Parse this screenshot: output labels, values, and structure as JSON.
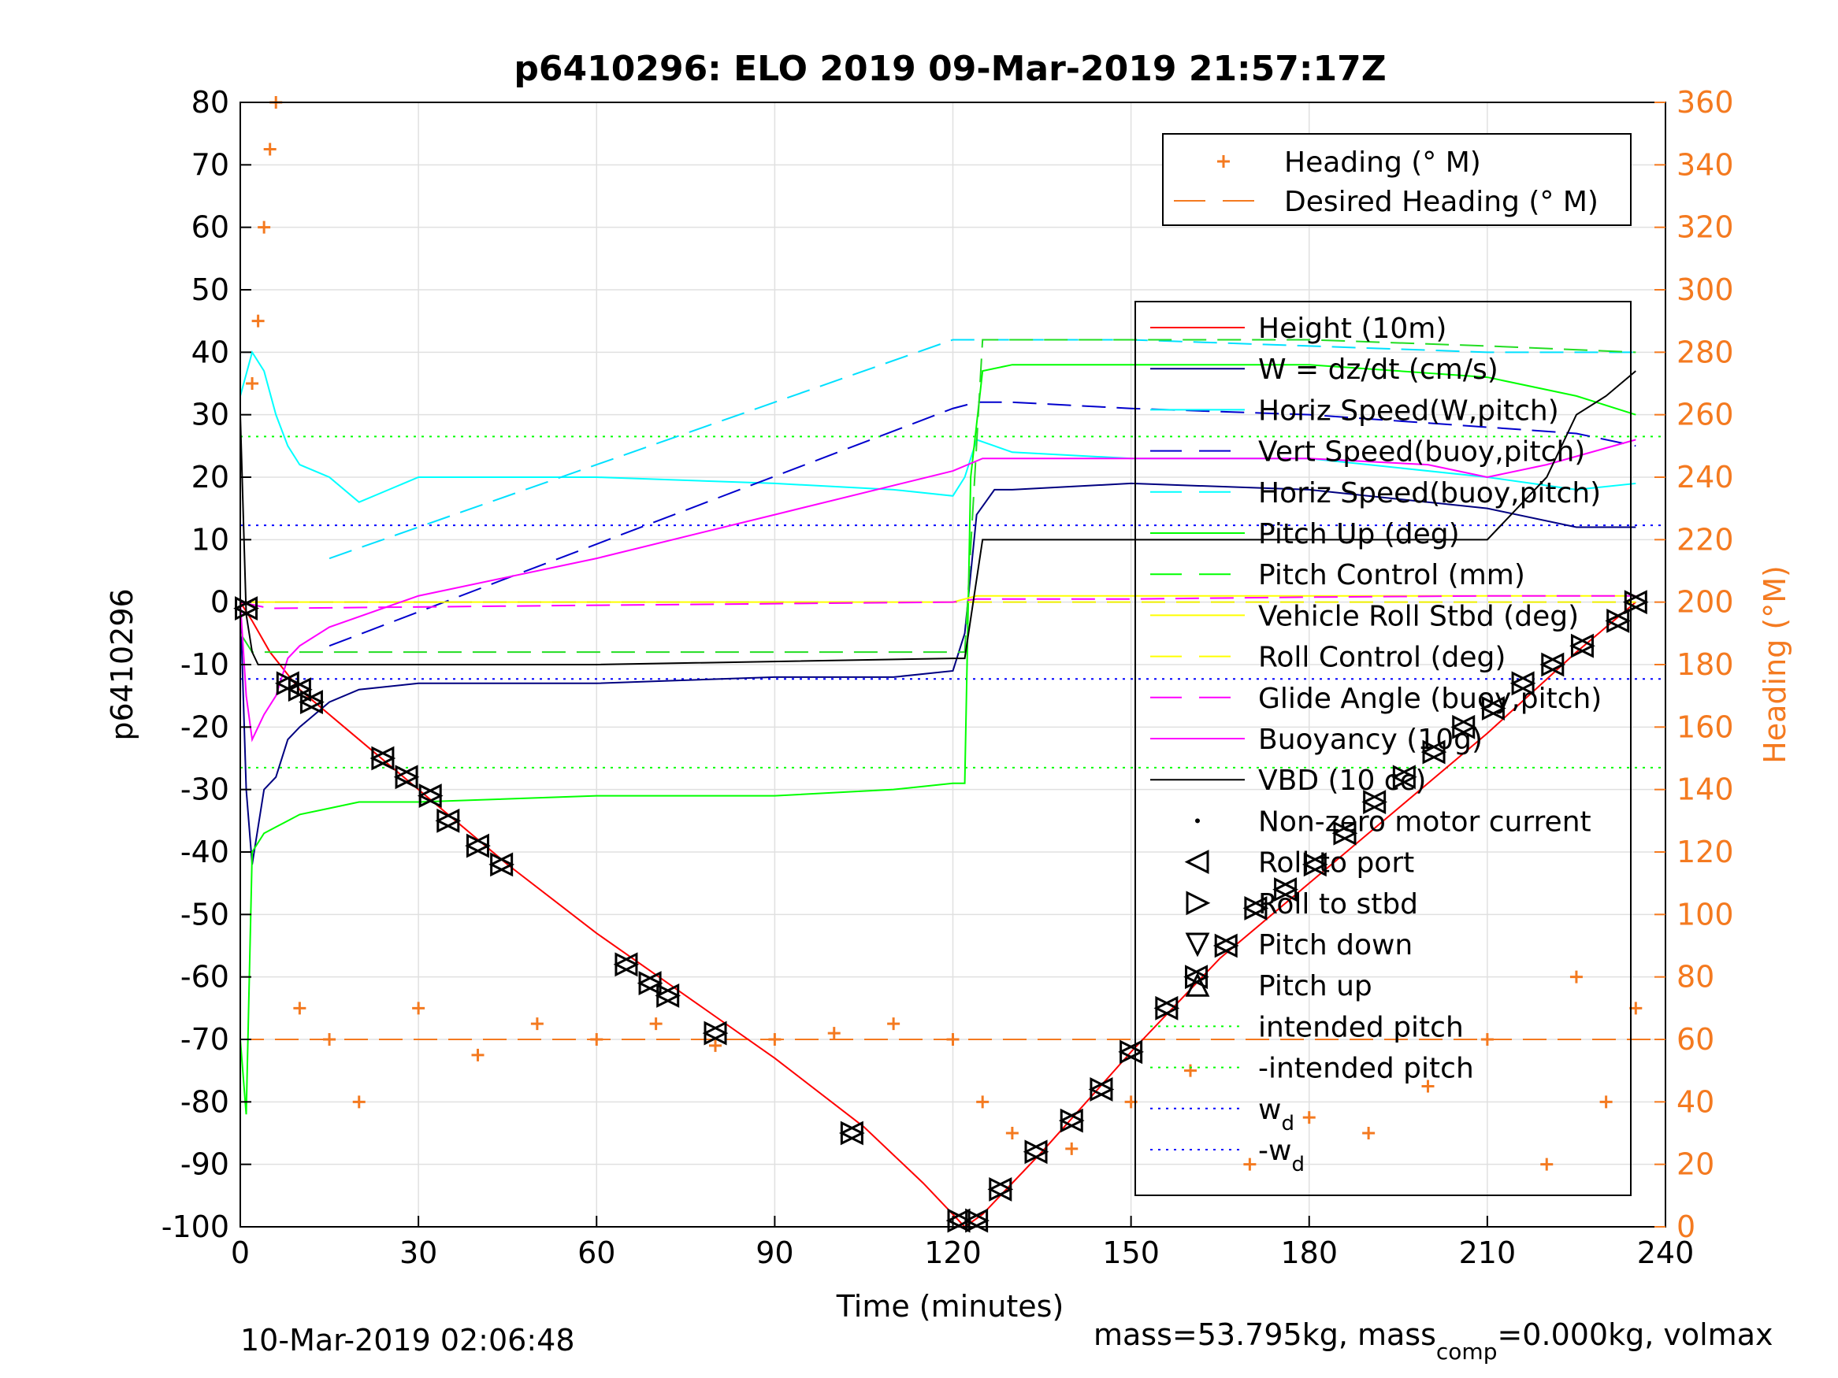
{
  "title": "p6410296: ELO 2019 09-Mar-2019 21:57:17Z",
  "xlabel": "Time (minutes)",
  "ylabel_left": "p6410296",
  "ylabel_right": "Heading (°M)",
  "footer_date": "10-Mar-2019 02:06:48",
  "footer_mass": {
    "a": "mass=53.795kg, mass",
    "sub": "comp",
    "b": "=0.000kg, volmax"
  },
  "colors": {
    "height": "#ff0000",
    "w": "#000080",
    "hspeed": "#00ffff",
    "vspeed": "#0000cd",
    "pitch": "#00ff00",
    "roll": "#ffff00",
    "glide": "#ff00ff",
    "buoy": "#ff00ff",
    "vbd": "#000000",
    "heading": "#f47a20",
    "intended": "#00ff00",
    "wd": "#0000ff"
  },
  "legend_heading": [
    {
      "label": "Heading (° M)",
      "marker": "plus"
    },
    {
      "label": "Desired Heading (° M)",
      "marker": "dash"
    }
  ],
  "legend_main": [
    {
      "label": "Height (10m)",
      "style": "solid",
      "color": "#ff0000"
    },
    {
      "label": "W = dz/dt (cm/s)",
      "style": "solid",
      "color": "#000080"
    },
    {
      "label": "Horiz Speed(W,pitch)",
      "style": "solid",
      "color": "#00ffff"
    },
    {
      "label": "Vert Speed(buoy,pitch)",
      "style": "dashed",
      "color": "#0000cd"
    },
    {
      "label": "Horiz Speed(buoy,pitch)",
      "style": "dashed",
      "color": "#00ffff"
    },
    {
      "label": "Pitch Up (deg)",
      "style": "solid",
      "color": "#00ff00"
    },
    {
      "label": "Pitch Control (mm)",
      "style": "dashed",
      "color": "#00ff00"
    },
    {
      "label": "Vehicle Roll Stbd (deg)",
      "style": "solid",
      "color": "#ffff00"
    },
    {
      "label": "Roll Control (deg)",
      "style": "dashed",
      "color": "#ffff00"
    },
    {
      "label": "Glide Angle (buoy,pitch)",
      "style": "dashed",
      "color": "#ff00ff"
    },
    {
      "label": "Buoyancy (10g)",
      "style": "solid",
      "color": "#ff00ff"
    },
    {
      "label": "VBD (10 cc)",
      "style": "solid",
      "color": "#000000"
    },
    {
      "label": "Non-zero motor current",
      "style": "dot",
      "color": "#000000"
    },
    {
      "label": "Roll to port",
      "style": "tri-left",
      "color": "#000000"
    },
    {
      "label": "Roll to stbd",
      "style": "tri-right",
      "color": "#000000"
    },
    {
      "label": "Pitch down",
      "style": "tri-down",
      "color": "#000000"
    },
    {
      "label": "Pitch up",
      "style": "tri-up",
      "color": "#000000"
    },
    {
      "label": "intended pitch",
      "style": "dotted",
      "color": "#00ff00"
    },
    {
      "label": "-intended pitch",
      "style": "dotted",
      "color": "#00ff00"
    },
    {
      "label": "w",
      "sub": "d",
      "style": "dotted",
      "color": "#0000ff"
    },
    {
      "label": "-w",
      "sub": "d",
      "style": "dotted",
      "color": "#0000ff"
    }
  ],
  "chart_data": {
    "type": "line",
    "xlim": [
      0,
      240
    ],
    "ylim_left": [
      -100,
      80
    ],
    "ylim_right": [
      0,
      360
    ],
    "xticks": [
      0,
      30,
      60,
      90,
      120,
      150,
      180,
      210,
      240
    ],
    "yticks_left": [
      80,
      70,
      60,
      50,
      40,
      30,
      20,
      10,
      0,
      -10,
      -20,
      -30,
      -40,
      -50,
      -60,
      -70,
      -80,
      -90,
      -100
    ],
    "yticks_right": [
      360,
      340,
      320,
      300,
      280,
      260,
      240,
      220,
      200,
      180,
      160,
      140,
      120,
      100,
      80,
      60,
      40,
      20,
      0
    ],
    "grid": true,
    "legend_position": "right",
    "reference_lines": {
      "intended_pitch": 26.5,
      "neg_intended_pitch": -26.5,
      "wd": 12.3,
      "neg_wd": -12.3,
      "desired_heading": 60
    },
    "series": [
      {
        "name": "Height (10m)",
        "x": [
          0,
          2,
          5,
          10,
          20,
          30,
          45,
          60,
          75,
          90,
          105,
          115,
          120,
          122,
          125,
          135,
          150,
          165,
          180,
          195,
          210,
          225,
          235
        ],
        "y": [
          0,
          -3,
          -8,
          -14,
          -22,
          -30,
          -42,
          -53,
          -63,
          -73,
          -84,
          -93,
          -98,
          -100,
          -98,
          -88,
          -72,
          -57,
          -45,
          -33,
          -21,
          -8,
          0
        ]
      },
      {
        "name": "W = dz/dt (cm/s)",
        "x": [
          0,
          1,
          2,
          4,
          6,
          8,
          10,
          15,
          20,
          30,
          60,
          90,
          110,
          120,
          122,
          124,
          127,
          130,
          150,
          180,
          210,
          225,
          235
        ],
        "y": [
          0,
          -30,
          -42,
          -30,
          -28,
          -22,
          -20,
          -16,
          -14,
          -13,
          -13,
          -12,
          -12,
          -11,
          -5,
          14,
          18,
          18,
          19,
          18,
          15,
          12,
          12
        ]
      },
      {
        "name": "Horiz Speed(W,pitch)",
        "x": [
          0,
          2,
          4,
          6,
          8,
          10,
          15,
          20,
          25,
          30,
          60,
          90,
          110,
          120,
          122,
          124,
          127,
          130,
          150,
          180,
          210,
          225,
          235
        ],
        "y": [
          33,
          40,
          37,
          30,
          25,
          22,
          20,
          16,
          18,
          20,
          20,
          19,
          18,
          17,
          20,
          26,
          25,
          24,
          23,
          23,
          20,
          18,
          19
        ]
      },
      {
        "name": "Vert Speed(buoy,pitch)",
        "x": [
          15,
          120,
          124,
          130,
          150,
          180,
          210,
          225,
          235
        ],
        "y": [
          -7,
          31,
          32,
          32,
          31,
          30,
          28,
          27,
          25
        ]
      },
      {
        "name": "Horiz Speed(buoy,pitch)",
        "x": [
          15,
          120,
          124,
          130,
          150,
          180,
          210,
          225,
          235
        ],
        "y": [
          7,
          42,
          42,
          42,
          42,
          41,
          40,
          40,
          40
        ]
      },
      {
        "name": "Pitch Up (deg)",
        "x": [
          0,
          1,
          2,
          4,
          6,
          8,
          10,
          15,
          20,
          30,
          60,
          90,
          110,
          120,
          122,
          123,
          125,
          130,
          150,
          180,
          210,
          225,
          235
        ],
        "y": [
          -70,
          -82,
          -40,
          -37,
          -36,
          -35,
          -34,
          -33,
          -32,
          -32,
          -31,
          -31,
          -30,
          -29,
          -29,
          20,
          37,
          38,
          38,
          38,
          36,
          33,
          30
        ]
      },
      {
        "name": "Pitch Control (mm)",
        "x": [
          0,
          2,
          5,
          10,
          60,
          120,
          122,
          125,
          150,
          180,
          210,
          235
        ],
        "y": [
          -5,
          -8,
          -8,
          -8,
          -8,
          -8,
          -8,
          42,
          42,
          42,
          41,
          40
        ]
      },
      {
        "name": "Vehicle Roll Stbd (deg)",
        "x": [
          0,
          120,
          124,
          150,
          180,
          210,
          235
        ],
        "y": [
          0,
          0,
          1,
          1,
          1,
          1,
          1
        ]
      },
      {
        "name": "Roll Control (deg)",
        "x": [
          0,
          120,
          124,
          235
        ],
        "y": [
          0,
          0,
          0,
          0
        ]
      },
      {
        "name": "Glide Angle (buoy,pitch)",
        "x": [
          0,
          5,
          60,
          120,
          124,
          150,
          180,
          210,
          235
        ],
        "y": [
          0,
          -1,
          -0.5,
          0,
          0.5,
          0.5,
          0.8,
          1,
          1
        ]
      },
      {
        "name": "Buoyancy (10g)",
        "x": [
          0,
          1,
          2,
          4,
          6,
          8,
          10,
          15,
          30,
          60,
          90,
          120,
          125,
          150,
          180,
          200,
          210,
          220,
          235
        ],
        "y": [
          0,
          -15,
          -22,
          -18,
          -15,
          -9,
          -7,
          -4,
          1,
          7,
          14,
          21,
          23,
          23,
          23,
          22,
          20,
          22,
          26
        ]
      },
      {
        "name": "VBD (10 cc)",
        "x": [
          0,
          1,
          2,
          3,
          10,
          60,
          120,
          122,
          125,
          150,
          180,
          210,
          215,
          220,
          225,
          230,
          235
        ],
        "y": [
          30,
          -2,
          -8,
          -10,
          -10,
          -10,
          -9,
          -9,
          10,
          10,
          10,
          10,
          15,
          20,
          30,
          33,
          37
        ]
      },
      {
        "name": "Heading (° M)",
        "x": [
          2,
          3,
          4,
          5,
          6,
          10,
          15,
          20,
          30,
          40,
          50,
          60,
          70,
          80,
          90,
          100,
          110,
          120,
          125,
          130,
          140,
          150,
          160,
          170,
          180,
          190,
          200,
          210,
          220,
          225,
          230,
          235
        ],
        "y": [
          270,
          290,
          320,
          345,
          360,
          70,
          60,
          40,
          70,
          55,
          65,
          60,
          65,
          58,
          60,
          62,
          65,
          60,
          40,
          30,
          25,
          40,
          50,
          20,
          35,
          30,
          45,
          60,
          20,
          80,
          40,
          70
        ]
      },
      {
        "name": "Desired Heading (° M)",
        "x": [
          0,
          240
        ],
        "y": [
          60,
          60
        ]
      }
    ],
    "markers": [
      {
        "type": "roll",
        "x": [
          1,
          8,
          10,
          12,
          24,
          28,
          32,
          35,
          40,
          44,
          65,
          69,
          72,
          80,
          103,
          121,
          124,
          128,
          134,
          140,
          145,
          150,
          156,
          161,
          166,
          171,
          176,
          181,
          186,
          191,
          196,
          201,
          206,
          211,
          216,
          221,
          226,
          232,
          235
        ],
        "y": [
          -1,
          -13,
          -14,
          -16,
          -25,
          -28,
          -31,
          -35,
          -39,
          -42,
          -58,
          -61,
          -63,
          -69,
          -85,
          -99,
          -99,
          -94,
          -88,
          -83,
          -78,
          -72,
          -65,
          -60,
          -55,
          -49,
          -46,
          -42,
          -37,
          -32,
          -28,
          -24,
          -20,
          -17,
          -13,
          -10,
          -7,
          -3,
          0
        ]
      }
    ]
  }
}
